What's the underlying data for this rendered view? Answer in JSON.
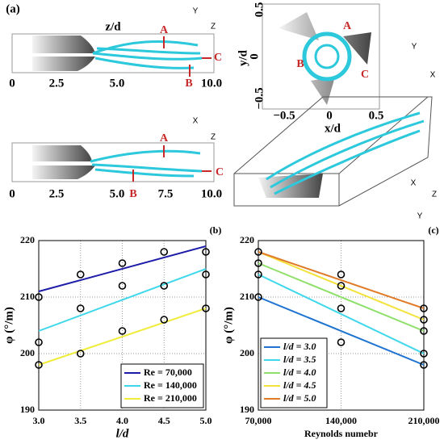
{
  "panel_a": {
    "label": "(a)",
    "view_1": {
      "axis_label": "z/d",
      "ticks": [
        "0",
        "2.5",
        "5.0",
        "10.0"
      ],
      "markers": [
        "A",
        "B",
        "C"
      ],
      "triad": [
        "Y",
        "Z"
      ]
    },
    "view_2": {
      "y_label": "y/d",
      "x_label": "x/d",
      "y_ticks": [
        "0.5",
        "0",
        "−0.5"
      ],
      "x_ticks": [
        "−0.5",
        "0",
        "0.5"
      ],
      "markers": [
        "A",
        "B",
        "C"
      ],
      "triad": [
        "Y",
        "X"
      ]
    },
    "view_3": {
      "ticks": [
        "0",
        "2.5",
        "5.0",
        "7.5",
        "10.0"
      ],
      "markers": [
        "A",
        "B",
        "C"
      ],
      "triad": [
        "X",
        "Z"
      ]
    },
    "view_4": {
      "triad": [
        "X",
        "Z",
        "Y"
      ]
    }
  },
  "chart_data": [
    {
      "type": "line",
      "panel_label": "(b)",
      "x_label": "l/d",
      "y_label": "φ (°/m)",
      "xlim": [
        3,
        5
      ],
      "ylim": [
        190,
        220
      ],
      "xticks": [
        {
          "value": 3,
          "label": "3.0"
        },
        {
          "value": 3.5,
          "label": "3.5"
        },
        {
          "value": 4,
          "label": "4.0"
        },
        {
          "value": 4.5,
          "label": "4.5"
        },
        {
          "value": 5,
          "label": "5.0"
        }
      ],
      "yticks": [
        190,
        200,
        210,
        220
      ],
      "grid": true,
      "legend": "lower right",
      "series": [
        {
          "name": "Re = 70,000",
          "color": "#1c1ca8",
          "x": [
            3,
            5
          ],
          "values": [
            211,
            219
          ]
        },
        {
          "name": "Re = 140,000",
          "color": "#3fd8ea",
          "x": [
            3,
            5
          ],
          "values": [
            204,
            215
          ]
        },
        {
          "name": "Re = 210,000",
          "color": "#f0ec3a",
          "x": [
            3,
            5
          ],
          "values": [
            198,
            208
          ]
        }
      ],
      "markers": {
        "x": [
          3,
          3,
          3,
          3.5,
          3.5,
          3.5,
          4,
          4,
          4,
          4.5,
          4.5,
          4.5,
          5,
          5,
          5
        ],
        "y": [
          210,
          202,
          198,
          214,
          208,
          200,
          216,
          212,
          204,
          218,
          212,
          206,
          218,
          214,
          208
        ]
      }
    },
    {
      "type": "line",
      "panel_label": "(c)",
      "x_label": "Reynolds numebr",
      "y_label": "φ (°/m)",
      "xlim": [
        70000,
        210000
      ],
      "ylim": [
        190,
        220
      ],
      "xticks": [
        {
          "value": 70000,
          "label": "70,000"
        },
        {
          "value": 140000,
          "label": "140,000"
        },
        {
          "value": 210000,
          "label": "210,000"
        }
      ],
      "yticks": [
        190,
        200,
        210,
        220
      ],
      "grid": true,
      "legend": "lower left",
      "series": [
        {
          "name": "l/d = 3.0",
          "color": "#1f74d2",
          "x": [
            70000,
            210000
          ],
          "values": [
            210,
            198
          ]
        },
        {
          "name": "l/d = 3.5",
          "color": "#3fd8ea",
          "x": [
            70000,
            210000
          ],
          "values": [
            214,
            200
          ]
        },
        {
          "name": "l/d = 4.0",
          "color": "#8fe06a",
          "x": [
            70000,
            210000
          ],
          "values": [
            216,
            204
          ]
        },
        {
          "name": "l/d = 4.5",
          "color": "#f3e23c",
          "x": [
            70000,
            210000
          ],
          "values": [
            218,
            206
          ]
        },
        {
          "name": "l/d = 5.0",
          "color": "#e07b2a",
          "x": [
            70000,
            210000
          ],
          "values": [
            218,
            208
          ]
        }
      ],
      "markers": {
        "x": [
          70000,
          70000,
          70000,
          70000,
          140000,
          140000,
          140000,
          140000,
          210000,
          210000,
          210000,
          210000,
          210000
        ],
        "y": [
          218,
          216,
          214,
          210,
          214,
          212,
          208,
          202,
          208,
          206,
          204,
          200,
          198
        ]
      }
    }
  ]
}
